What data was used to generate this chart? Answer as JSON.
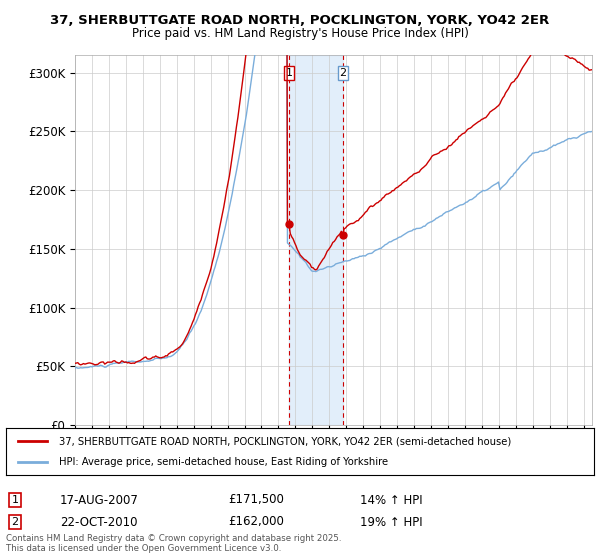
{
  "title1": "37, SHERBUTTGATE ROAD NORTH, POCKLINGTON, YORK, YO42 2ER",
  "title2": "Price paid vs. HM Land Registry's House Price Index (HPI)",
  "ylabel_ticks": [
    "£0",
    "£50K",
    "£100K",
    "£150K",
    "£200K",
    "£250K",
    "£300K"
  ],
  "ylim": [
    0,
    315000
  ],
  "xlim_start": 1995.0,
  "xlim_end": 2025.5,
  "sale1_date": 2007.62,
  "sale1_price": 171500,
  "sale2_date": 2010.8,
  "sale2_price": 162000,
  "legend_line1": "37, SHERBUTTGATE ROAD NORTH, POCKLINGTON, YORK, YO42 2ER (semi-detached house)",
  "legend_line2": "HPI: Average price, semi-detached house, East Riding of Yorkshire",
  "footnote": "Contains HM Land Registry data © Crown copyright and database right 2025.\nThis data is licensed under the Open Government Licence v3.0.",
  "property_color": "#cc0000",
  "hpi_color": "#7aaddb",
  "background_color": "#ffffff",
  "grid_color": "#cccccc",
  "shade_color": "#d0e4f7",
  "ann1_date": "17-AUG-2007",
  "ann1_price": "£171,500",
  "ann1_hpi": "14% ↑ HPI",
  "ann2_date": "22-OCT-2010",
  "ann2_price": "£162,000",
  "ann2_hpi": "19% ↑ HPI"
}
